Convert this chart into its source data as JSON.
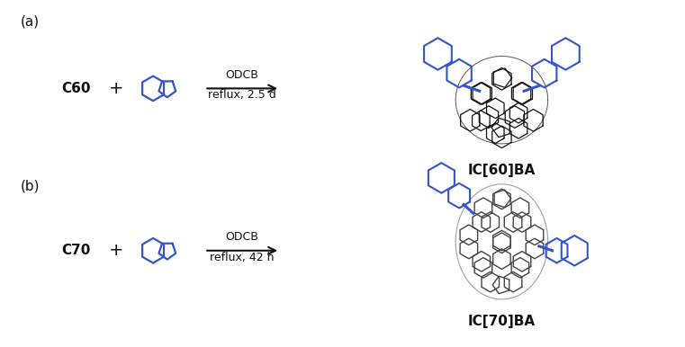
{
  "bg_color": "#ffffff",
  "label_a": "(a)",
  "label_b": "(b)",
  "reactant_a": "C60",
  "reactant_b": "C70",
  "plus": "+",
  "condition_a1": "ODCB",
  "condition_a2": "reflux, 2.5 d",
  "condition_b1": "ODCB",
  "condition_b2": "reflux, 42 h",
  "product_a": "IC[60]BA",
  "product_b": "IC[70]BA",
  "black": "#111111",
  "blue": "#3355cc",
  "dark_gray": "#444444",
  "fig_width": 7.61,
  "fig_height": 3.86,
  "dpi": 100
}
